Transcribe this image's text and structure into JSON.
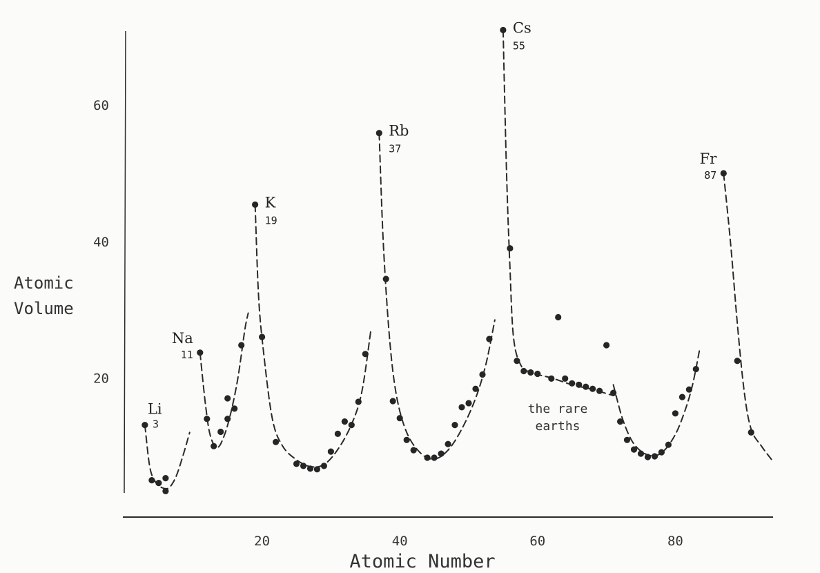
{
  "chart_data": {
    "type": "scatter",
    "xlabel": "Atomic Number",
    "ylabel_line1": "Atomic",
    "ylabel_line2": "Volume",
    "xlim": [
      0,
      95
    ],
    "ylim": [
      0,
      68
    ],
    "x_ticks": [
      20,
      40,
      60,
      80
    ],
    "x_tick_labels": [
      "20",
      "40",
      "60",
      "80"
    ],
    "y_ticks": [
      20,
      40,
      60
    ],
    "y_tick_labels": [
      "20",
      "40",
      "60"
    ],
    "grid": false,
    "points": [
      {
        "x": 3,
        "y": 13.1
      },
      {
        "x": 4,
        "y": 5.0
      },
      {
        "x": 5,
        "y": 4.6
      },
      {
        "x": 6,
        "y": 3.4
      },
      {
        "x": 6,
        "y": 5.3
      },
      {
        "x": 11,
        "y": 23.7
      },
      {
        "x": 12,
        "y": 14.0
      },
      {
        "x": 13,
        "y": 10.0
      },
      {
        "x": 14,
        "y": 12.1
      },
      {
        "x": 15,
        "y": 17.0
      },
      {
        "x": 15,
        "y": 14.0
      },
      {
        "x": 16,
        "y": 15.5
      },
      {
        "x": 17,
        "y": 24.8
      },
      {
        "x": 19,
        "y": 45.4
      },
      {
        "x": 20,
        "y": 26.0
      },
      {
        "x": 22,
        "y": 10.6
      },
      {
        "x": 25,
        "y": 7.4
      },
      {
        "x": 26,
        "y": 7.1
      },
      {
        "x": 27,
        "y": 6.7
      },
      {
        "x": 28,
        "y": 6.6
      },
      {
        "x": 29,
        "y": 7.1
      },
      {
        "x": 30,
        "y": 9.2
      },
      {
        "x": 31,
        "y": 11.8
      },
      {
        "x": 32,
        "y": 13.6
      },
      {
        "x": 33,
        "y": 13.1
      },
      {
        "x": 34,
        "y": 16.5
      },
      {
        "x": 35,
        "y": 23.5
      },
      {
        "x": 37,
        "y": 55.9
      },
      {
        "x": 38,
        "y": 34.5
      },
      {
        "x": 39,
        "y": 16.6
      },
      {
        "x": 40,
        "y": 14.1
      },
      {
        "x": 41,
        "y": 10.9
      },
      {
        "x": 42,
        "y": 9.4
      },
      {
        "x": 44,
        "y": 8.3
      },
      {
        "x": 45,
        "y": 8.3
      },
      {
        "x": 46,
        "y": 8.9
      },
      {
        "x": 47,
        "y": 10.3
      },
      {
        "x": 48,
        "y": 13.1
      },
      {
        "x": 49,
        "y": 15.7
      },
      {
        "x": 50,
        "y": 16.3
      },
      {
        "x": 51,
        "y": 18.4
      },
      {
        "x": 52,
        "y": 20.5
      },
      {
        "x": 53,
        "y": 25.7
      },
      {
        "x": 55,
        "y": 71.0
      },
      {
        "x": 56,
        "y": 39.0
      },
      {
        "x": 57,
        "y": 22.5
      },
      {
        "x": 58,
        "y": 21.0
      },
      {
        "x": 59,
        "y": 20.8
      },
      {
        "x": 60,
        "y": 20.6
      },
      {
        "x": 62,
        "y": 19.9
      },
      {
        "x": 63,
        "y": 28.9
      },
      {
        "x": 64,
        "y": 19.9
      },
      {
        "x": 65,
        "y": 19.2
      },
      {
        "x": 66,
        "y": 19.0
      },
      {
        "x": 67,
        "y": 18.7
      },
      {
        "x": 68,
        "y": 18.4
      },
      {
        "x": 69,
        "y": 18.1
      },
      {
        "x": 70,
        "y": 24.8
      },
      {
        "x": 71,
        "y": 17.8
      },
      {
        "x": 72,
        "y": 13.6
      },
      {
        "x": 73,
        "y": 10.9
      },
      {
        "x": 74,
        "y": 9.5
      },
      {
        "x": 75,
        "y": 8.9
      },
      {
        "x": 76,
        "y": 8.4
      },
      {
        "x": 77,
        "y": 8.5
      },
      {
        "x": 78,
        "y": 9.1
      },
      {
        "x": 79,
        "y": 10.2
      },
      {
        "x": 80,
        "y": 14.8
      },
      {
        "x": 81,
        "y": 17.2
      },
      {
        "x": 82,
        "y": 18.3
      },
      {
        "x": 83,
        "y": 21.3
      },
      {
        "x": 87,
        "y": 50.0
      },
      {
        "x": 89,
        "y": 22.5
      },
      {
        "x": 91,
        "y": 12.0
      }
    ],
    "curves": [
      [
        [
          3,
          13.1
        ],
        [
          3.7,
          7.0
        ],
        [
          4.5,
          4.8
        ],
        [
          5.5,
          3.9
        ],
        [
          6.5,
          3.9
        ],
        [
          7.5,
          5.5
        ],
        [
          8.5,
          8.5
        ],
        [
          9.5,
          12.0
        ]
      ],
      [
        [
          11,
          23.7
        ],
        [
          11.8,
          16.0
        ],
        [
          12.5,
          11.5
        ],
        [
          13.5,
          9.8
        ],
        [
          14.5,
          11.5
        ],
        [
          15.5,
          15.0
        ],
        [
          16.5,
          20.0
        ],
        [
          17.5,
          27.0
        ],
        [
          18,
          29.5
        ]
      ],
      [
        [
          19,
          45.4
        ],
        [
          19.5,
          32.0
        ],
        [
          20.2,
          24.0
        ],
        [
          21.5,
          14.0
        ],
        [
          23,
          10.0
        ],
        [
          25,
          8.0
        ],
        [
          27,
          7.0
        ],
        [
          29,
          7.3
        ],
        [
          31,
          9.5
        ],
        [
          33,
          13.2
        ],
        [
          34.5,
          18.0
        ],
        [
          35.8,
          27.0
        ]
      ],
      [
        [
          37,
          55.9
        ],
        [
          37.6,
          40.0
        ],
        [
          38.5,
          26.0
        ],
        [
          39.5,
          17.5
        ],
        [
          41,
          12.0
        ],
        [
          43,
          9.0
        ],
        [
          45,
          8.1
        ],
        [
          47,
          9.4
        ],
        [
          49,
          12.5
        ],
        [
          51,
          17.0
        ],
        [
          52.5,
          22.0
        ],
        [
          53.8,
          28.5
        ]
      ],
      [
        [
          55,
          71.0
        ],
        [
          55.5,
          50.0
        ],
        [
          56,
          36.0
        ],
        [
          56.5,
          26.0
        ],
        [
          57.5,
          22.0
        ],
        [
          59,
          20.8
        ],
        [
          62,
          20.0
        ],
        [
          65,
          19.0
        ],
        [
          68,
          18.3
        ],
        [
          71,
          17.4
        ]
      ],
      [
        [
          71,
          19.0
        ],
        [
          71.5,
          17.0
        ],
        [
          72.5,
          13.5
        ],
        [
          74,
          10.3
        ],
        [
          76,
          8.7
        ],
        [
          78,
          9.0
        ],
        [
          80,
          11.7
        ],
        [
          81.5,
          15.5
        ],
        [
          82.5,
          19.0
        ],
        [
          83.5,
          24.0
        ]
      ],
      [
        [
          87,
          50.0
        ],
        [
          88,
          40.0
        ],
        [
          89,
          28.0
        ],
        [
          90,
          18.0
        ],
        [
          91,
          12.5
        ],
        [
          92.5,
          10.0
        ],
        [
          94,
          8.0
        ]
      ]
    ],
    "element_labels": [
      {
        "symbol": "Li",
        "number": "3",
        "x": 3,
        "y": 13.1,
        "pos": "above-right"
      },
      {
        "symbol": "Na",
        "number": "11",
        "x": 11,
        "y": 23.7,
        "pos": "left"
      },
      {
        "symbol": "K",
        "number": "19",
        "x": 19,
        "y": 45.4,
        "pos": "right"
      },
      {
        "symbol": "Rb",
        "number": "37",
        "x": 37,
        "y": 55.9,
        "pos": "right"
      },
      {
        "symbol": "Cs",
        "number": "55",
        "x": 55,
        "y": 71.0,
        "pos": "right"
      },
      {
        "symbol": "Fr",
        "number": "87",
        "x": 87,
        "y": 50.0,
        "pos": "left"
      }
    ],
    "annotation_lines": [
      "the rare",
      "earths"
    ]
  }
}
